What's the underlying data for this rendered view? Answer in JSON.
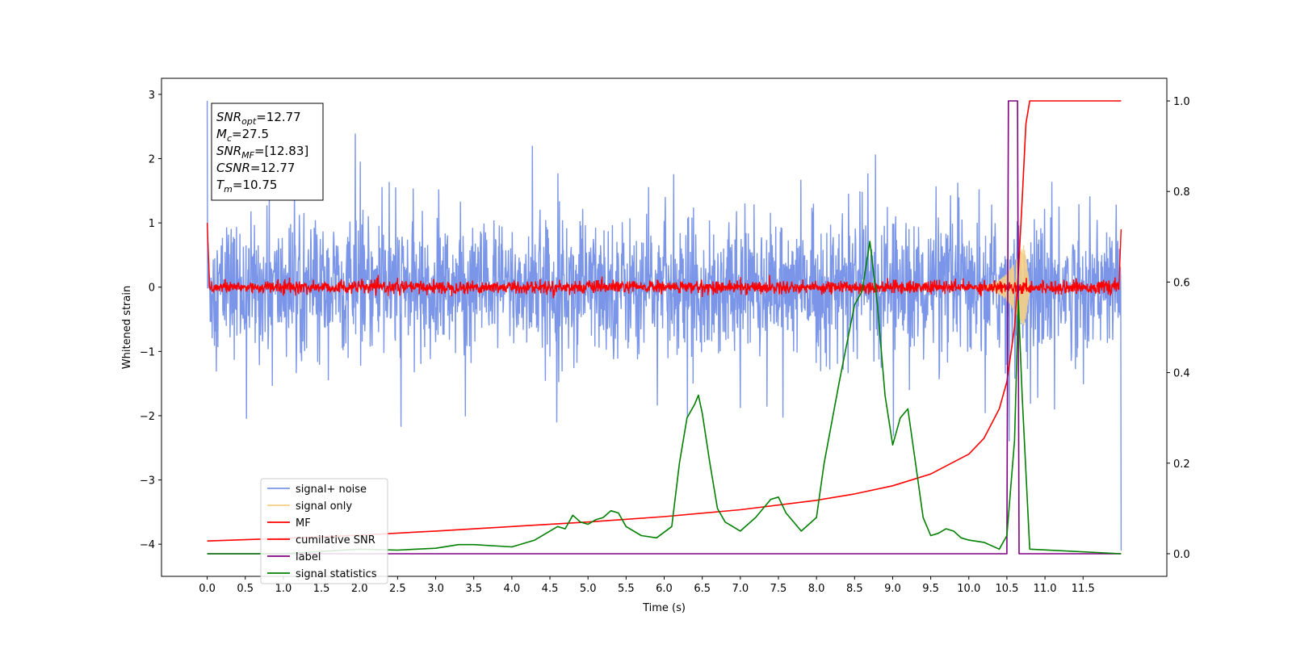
{
  "chart_data": {
    "type": "line",
    "xlabel": "Time (s)",
    "ylabel": "Whitened strain",
    "x_ticks": [
      "0.0",
      "0.5",
      "1.0",
      "1.5",
      "2.0",
      "2.5",
      "3.0",
      "3.5",
      "4.0",
      "4.5",
      "5.0",
      "5.5",
      "6.0",
      "6.5",
      "7.0",
      "7.5",
      "8.0",
      "8.5",
      "9.0",
      "9.5",
      "10.0",
      "10.5",
      "11.0",
      "11.5"
    ],
    "y_left_ticks": [
      "3",
      "2",
      "1",
      "0",
      "−1",
      "−2",
      "−3",
      "−4"
    ],
    "y_right_ticks": [
      "1.0",
      "0.8",
      "0.6",
      "0.4",
      "0.2",
      "0.0"
    ],
    "xlim": [
      -0.6,
      12.6
    ],
    "ylim_left": [
      -4.5,
      3.25
    ],
    "ylim_right": [
      -0.05,
      1.05
    ],
    "grid": false,
    "legend_position": "lower-left",
    "info_box": {
      "lines": [
        {
          "name": "SNR",
          "sub": "opt",
          "value": "=12.77"
        },
        {
          "name": "M",
          "sub": "c",
          "value": "=27.5"
        },
        {
          "name": "SNR",
          "sub": "MF",
          "value": "=[12.83]"
        },
        {
          "name": "CSNR",
          "sub": "",
          "value": "=12.77"
        },
        {
          "name": "T",
          "sub": "m",
          "value": "=10.75"
        }
      ]
    },
    "series": [
      {
        "name": "signal+ noise",
        "color": "#7b96e8",
        "axis": "left",
        "style": "noise",
        "x_range": [
          0.0,
          12.0
        ],
        "envelope_typical": [
          -1.2,
          1.5
        ],
        "spike_max": 2.9,
        "spike_min": -4.1
      },
      {
        "name": "signal only",
        "color": "#f5cf85",
        "axis": "left",
        "style": "chirp",
        "x_range": [
          10.0,
          10.8
        ],
        "peak_amplitude": 0.9
      },
      {
        "name": "MF",
        "color": "#ff0000",
        "axis": "left",
        "style": "noise",
        "x_range": [
          0.0,
          12.0
        ],
        "envelope_typical": [
          -0.15,
          0.2
        ]
      },
      {
        "name": "cumilative SNR",
        "color": "#ff0000",
        "axis": "right",
        "x": [
          0.0,
          1.0,
          2.0,
          3.0,
          4.0,
          5.0,
          6.0,
          7.0,
          8.0,
          8.5,
          9.0,
          9.5,
          10.0,
          10.2,
          10.4,
          10.5,
          10.6,
          10.65,
          10.7,
          10.75,
          10.8,
          12.0
        ],
        "y": [
          0.028,
          0.034,
          0.041,
          0.05,
          0.06,
          0.07,
          0.082,
          0.097,
          0.118,
          0.132,
          0.15,
          0.176,
          0.22,
          0.255,
          0.32,
          0.38,
          0.5,
          0.62,
          0.78,
          0.95,
          1.0,
          1.0
        ]
      },
      {
        "name": "label",
        "color": "#800080",
        "axis": "right",
        "x": [
          0.0,
          10.5,
          10.52,
          10.64,
          10.66,
          12.0
        ],
        "y": [
          0.0,
          0.0,
          1.0,
          1.0,
          0.0,
          0.0
        ]
      },
      {
        "name": "signal statistics",
        "color": "#008000",
        "axis": "right",
        "x": [
          0.0,
          0.5,
          1.0,
          1.5,
          2.0,
          2.5,
          3.0,
          3.3,
          3.5,
          4.0,
          4.3,
          4.5,
          4.6,
          4.7,
          4.8,
          4.9,
          5.0,
          5.1,
          5.2,
          5.3,
          5.4,
          5.5,
          5.7,
          5.9,
          6.1,
          6.2,
          6.3,
          6.4,
          6.45,
          6.5,
          6.6,
          6.7,
          6.8,
          7.0,
          7.2,
          7.4,
          7.5,
          7.6,
          7.8,
          8.0,
          8.1,
          8.3,
          8.5,
          8.6,
          8.7,
          8.8,
          8.9,
          9.0,
          9.1,
          9.2,
          9.3,
          9.4,
          9.5,
          9.6,
          9.7,
          9.8,
          9.9,
          10.0,
          10.2,
          10.4,
          10.5,
          10.6,
          10.65,
          10.7,
          10.8,
          12.0
        ],
        "y": [
          0.0,
          0.0,
          0.0,
          0.005,
          0.01,
          0.008,
          0.012,
          0.02,
          0.02,
          0.015,
          0.03,
          0.05,
          0.06,
          0.055,
          0.085,
          0.07,
          0.065,
          0.075,
          0.08,
          0.095,
          0.09,
          0.06,
          0.04,
          0.035,
          0.06,
          0.2,
          0.3,
          0.33,
          0.35,
          0.31,
          0.2,
          0.1,
          0.07,
          0.05,
          0.08,
          0.12,
          0.125,
          0.09,
          0.05,
          0.08,
          0.2,
          0.38,
          0.55,
          0.58,
          0.69,
          0.55,
          0.35,
          0.24,
          0.3,
          0.32,
          0.2,
          0.08,
          0.04,
          0.045,
          0.055,
          0.05,
          0.035,
          0.03,
          0.025,
          0.01,
          0.04,
          0.25,
          0.56,
          0.35,
          0.01,
          0.0
        ]
      }
    ]
  }
}
